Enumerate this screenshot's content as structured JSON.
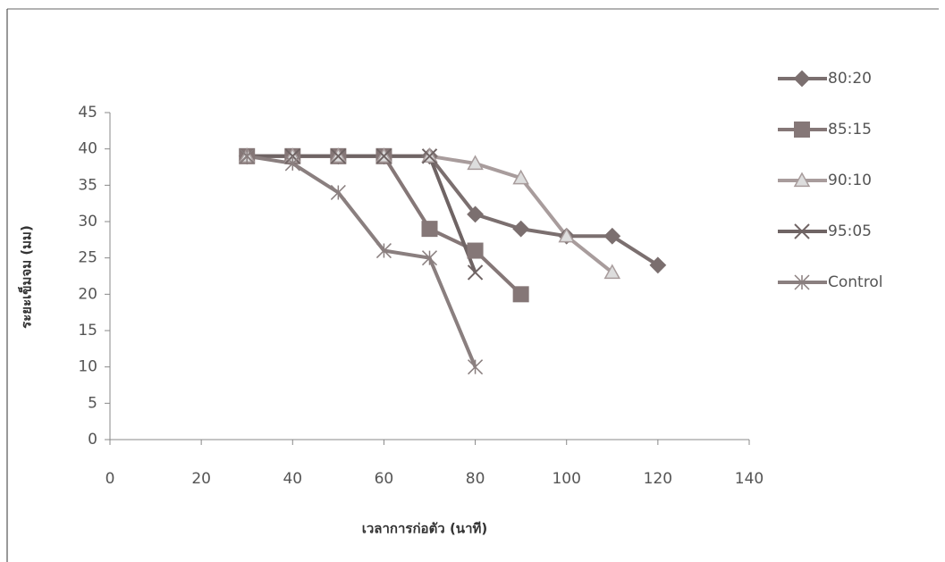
{
  "chart_data": {
    "type": "line",
    "x_label": "เวลาการก่อตัว (นาที)",
    "y_label": "ระยะเข็มจม (มม)",
    "x": [
      30,
      40,
      50,
      60,
      70,
      80,
      90,
      100,
      110,
      120
    ],
    "series": [
      {
        "name": "80:20",
        "color": "#7b6f6f",
        "marker": "diamond",
        "values": [
          39,
          39,
          39,
          39,
          39,
          31,
          29,
          28,
          28,
          24
        ]
      },
      {
        "name": "85:15",
        "color": "#857777",
        "marker": "square",
        "values": [
          39,
          39,
          39,
          39,
          29,
          26,
          20,
          null,
          null,
          null
        ]
      },
      {
        "name": "90:10",
        "color": "#a89c9c",
        "marker": "triangle",
        "values": [
          39,
          39,
          39,
          39,
          39,
          38,
          36,
          28,
          23,
          null
        ]
      },
      {
        "name": "95:05",
        "color": "#6f6464",
        "marker": "x",
        "values": [
          39,
          39,
          39,
          39,
          39,
          23,
          null,
          null,
          null,
          null
        ]
      },
      {
        "name": "Control",
        "color": "#8a7f7f",
        "marker": "star",
        "values": [
          39,
          38,
          34,
          26,
          25,
          10,
          null,
          null,
          null,
          null
        ]
      }
    ],
    "xlim": [
      0,
      140
    ],
    "xticks": [
      0,
      20,
      40,
      60,
      80,
      100,
      120,
      140
    ],
    "ylim": [
      0,
      45
    ],
    "yticks": [
      0,
      5,
      10,
      15,
      20,
      25,
      30,
      35,
      40,
      45
    ],
    "legend": "right"
  }
}
